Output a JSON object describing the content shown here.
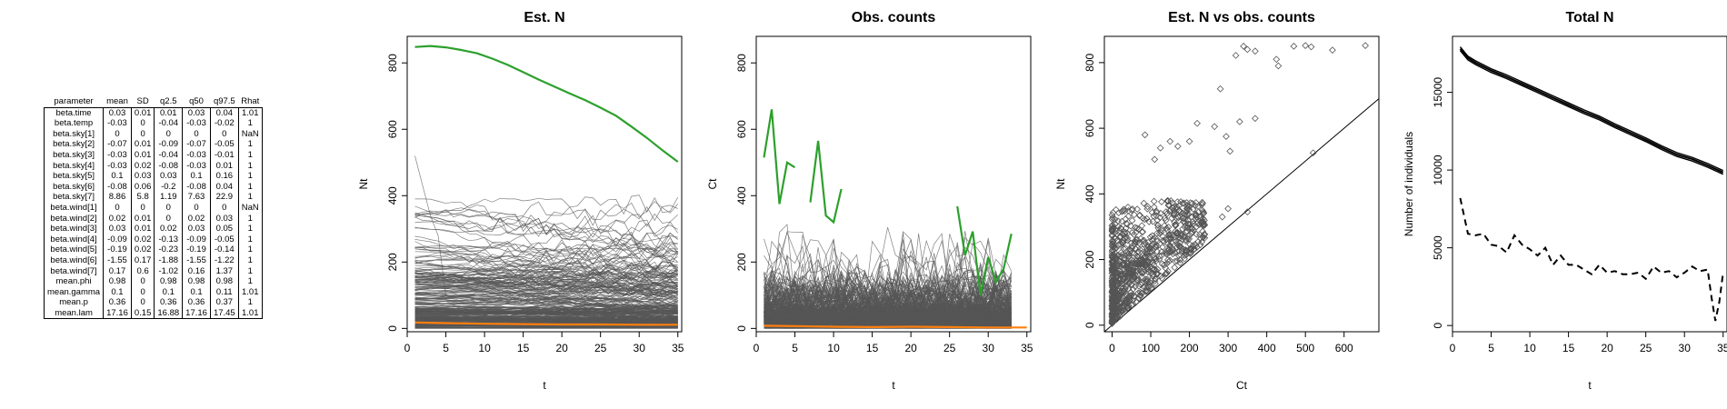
{
  "table": {
    "columns": [
      "parameter",
      "mean",
      "SD",
      "q2.5",
      "q50",
      "q97.5",
      "Rhat"
    ],
    "rows": [
      [
        "beta.time",
        "0.03",
        "0.01",
        "0.01",
        "0.03",
        "0.04",
        "1.01"
      ],
      [
        "beta.temp",
        "-0.03",
        "0",
        "-0.04",
        "-0.03",
        "-0.02",
        "1"
      ],
      [
        "beta.sky[1]",
        "0",
        "0",
        "0",
        "0",
        "0",
        "NaN"
      ],
      [
        "beta.sky[2]",
        "-0.07",
        "0.01",
        "-0.09",
        "-0.07",
        "-0.05",
        "1"
      ],
      [
        "beta.sky[3]",
        "-0.03",
        "0.01",
        "-0.04",
        "-0.03",
        "-0.01",
        "1"
      ],
      [
        "beta.sky[4]",
        "-0.03",
        "0.02",
        "-0.08",
        "-0.03",
        "0.01",
        "1"
      ],
      [
        "beta.sky[5]",
        "0.1",
        "0.03",
        "0.03",
        "0.1",
        "0.16",
        "1"
      ],
      [
        "beta.sky[6]",
        "-0.08",
        "0.06",
        "-0.2",
        "-0.08",
        "0.04",
        "1"
      ],
      [
        "beta.sky[7]",
        "8.86",
        "5.8",
        "1.19",
        "7.63",
        "22.9",
        "1"
      ],
      [
        "beta.wind[1]",
        "0",
        "0",
        "0",
        "0",
        "0",
        "NaN"
      ],
      [
        "beta.wind[2]",
        "0.02",
        "0.01",
        "0",
        "0.02",
        "0.03",
        "1"
      ],
      [
        "beta.wind[3]",
        "0.03",
        "0.01",
        "0.02",
        "0.03",
        "0.05",
        "1"
      ],
      [
        "beta.wind[4]",
        "-0.09",
        "0.02",
        "-0.13",
        "-0.09",
        "-0.05",
        "1"
      ],
      [
        "beta.wind[5]",
        "-0.19",
        "0.02",
        "-0.23",
        "-0.19",
        "-0.14",
        "1"
      ],
      [
        "beta.wind[6]",
        "-1.55",
        "0.17",
        "-1.88",
        "-1.55",
        "-1.22",
        "1"
      ],
      [
        "beta.wind[7]",
        "0.17",
        "0.6",
        "-1.02",
        "0.16",
        "1.37",
        "1"
      ],
      [
        "mean.phi",
        "0.98",
        "0",
        "0.98",
        "0.98",
        "0.98",
        "1"
      ],
      [
        "mean.gamma",
        "0.1",
        "0",
        "0.1",
        "0.1",
        "0.11",
        "1.01"
      ],
      [
        "mean.p",
        "0.36",
        "0",
        "0.36",
        "0.36",
        "0.37",
        "1"
      ],
      [
        "mean.lam",
        "17.16",
        "0.15",
        "16.88",
        "17.16",
        "17.45",
        "1.01"
      ]
    ]
  },
  "chart_data": [
    {
      "type": "line",
      "title": "Est. N",
      "xlabel": "t",
      "ylabel": "Nt",
      "xlim": [
        0,
        35.5
      ],
      "ylim": [
        -10,
        880
      ],
      "xticks": [
        0,
        5,
        10,
        15,
        20,
        25,
        30,
        35
      ],
      "yticks": [
        0,
        200,
        400,
        600,
        800
      ],
      "background": {
        "description_values": "about 300 gray per-site trajectories, most between 0 and 380",
        "color": "#555555"
      },
      "series": [
        {
          "color": "#2ca02c",
          "x": [
            1,
            3,
            5,
            7,
            9,
            11,
            13,
            15,
            17,
            19,
            21,
            23,
            25,
            27,
            29,
            31,
            33,
            35
          ],
          "y": [
            848,
            851,
            847,
            839,
            829,
            813,
            794,
            772,
            750,
            729,
            708,
            688,
            665,
            641,
            608,
            574,
            537,
            502
          ]
        },
        {
          "color": "#ff7f0e",
          "x": [
            1,
            5,
            10,
            15,
            20,
            25,
            30,
            35
          ],
          "y": [
            18,
            16,
            14,
            13,
            12,
            12,
            11,
            11
          ]
        }
      ]
    },
    {
      "type": "line",
      "title": "Obs. counts",
      "xlabel": "t",
      "ylabel": "Ct",
      "xlim": [
        0,
        35.5
      ],
      "ylim": [
        -10,
        880
      ],
      "xticks": [
        0,
        5,
        10,
        15,
        20,
        25,
        30,
        35
      ],
      "yticks": [
        0,
        200,
        400,
        600,
        800
      ],
      "background": {
        "description_values": "about 300 gray per-site count series, mostly between 0 and 250",
        "color": "#555555"
      },
      "series": [
        {
          "color": "#2ca02c",
          "segments": [
            {
              "x": [
                1,
                2,
                3,
                4,
                5
              ],
              "y": [
                515,
                660,
                375,
                500,
                485
              ]
            },
            {
              "x": [
                7,
                8,
                9,
                10,
                11
              ],
              "y": [
                380,
                565,
                340,
                320,
                420
              ]
            },
            {
              "x": [
                26,
                27,
                28,
                29,
                30,
                31,
                32,
                33
              ],
              "y": [
                368,
                220,
                292,
                100,
                215,
                140,
                180,
                285
              ]
            }
          ]
        },
        {
          "color": "#ff7f0e",
          "x": [
            1,
            5,
            10,
            15,
            20,
            25,
            30,
            35
          ],
          "y": [
            8,
            7,
            5,
            4,
            5,
            4,
            3,
            3
          ]
        }
      ]
    },
    {
      "type": "scatter",
      "title": "Est. N vs obs. counts",
      "xlabel": "Ct",
      "ylabel": "Nt",
      "xlim": [
        -20,
        690
      ],
      "ylim": [
        -20,
        880
      ],
      "xticks": [
        0,
        100,
        200,
        300,
        400,
        500,
        600
      ],
      "yticks": [
        0,
        200,
        400,
        600,
        800
      ],
      "reference_line": {
        "type": "1:1 line",
        "x": [
          -20,
          690
        ],
        "y": [
          -20,
          690
        ]
      },
      "marker": "open diamond",
      "cloud": {
        "description_values": "dense cluster of points for Ct 0-250, Nt 0-380, all above the 1:1 line"
      },
      "points": [
        {
          "x": 340,
          "y": 850
        },
        {
          "x": 350,
          "y": 840
        },
        {
          "x": 320,
          "y": 822
        },
        {
          "x": 370,
          "y": 835
        },
        {
          "x": 425,
          "y": 810
        },
        {
          "x": 430,
          "y": 790
        },
        {
          "x": 470,
          "y": 850
        },
        {
          "x": 500,
          "y": 852
        },
        {
          "x": 515,
          "y": 848
        },
        {
          "x": 570,
          "y": 838
        },
        {
          "x": 655,
          "y": 852
        },
        {
          "x": 280,
          "y": 720
        },
        {
          "x": 330,
          "y": 620
        },
        {
          "x": 370,
          "y": 630
        },
        {
          "x": 220,
          "y": 615
        },
        {
          "x": 265,
          "y": 605
        },
        {
          "x": 85,
          "y": 580
        },
        {
          "x": 150,
          "y": 560
        },
        {
          "x": 200,
          "y": 560
        },
        {
          "x": 295,
          "y": 575
        },
        {
          "x": 305,
          "y": 530
        },
        {
          "x": 125,
          "y": 540
        },
        {
          "x": 170,
          "y": 545
        },
        {
          "x": 110,
          "y": 505
        },
        {
          "x": 520,
          "y": 525
        },
        {
          "x": 350,
          "y": 345
        },
        {
          "x": 300,
          "y": 355
        },
        {
          "x": 285,
          "y": 330
        }
      ]
    },
    {
      "type": "line",
      "title": "Total N",
      "xlabel": "t",
      "ylabel": "Number of individuals",
      "xlim": [
        0,
        35.5
      ],
      "ylim": [
        -400,
        18600
      ],
      "xticks": [
        0,
        5,
        10,
        15,
        20,
        25,
        30,
        35
      ],
      "yticks": [
        0,
        5000,
        10000,
        15000
      ],
      "series": [
        {
          "style": "solid",
          "color": "#000000",
          "x": [
            1,
            2,
            3,
            5,
            7,
            9,
            11,
            13,
            15,
            17,
            19,
            21,
            23,
            25,
            27,
            29,
            31,
            33,
            35
          ],
          "y": [
            17800,
            17200,
            16900,
            16400,
            16000,
            15550,
            15100,
            14650,
            14200,
            13750,
            13350,
            12850,
            12400,
            11950,
            11450,
            11000,
            10700,
            10300,
            9850
          ]
        },
        {
          "style": "dashed",
          "color": "#000000",
          "x": [
            1,
            2,
            3,
            4,
            5,
            6,
            7,
            8,
            9,
            10,
            11,
            12,
            13,
            14,
            15,
            16,
            17,
            18,
            19,
            20,
            21,
            22,
            23,
            24,
            25,
            26,
            27,
            28,
            29,
            30,
            31,
            32,
            33,
            33.5,
            34,
            34.5,
            35
          ],
          "y": [
            8200,
            5900,
            5800,
            5900,
            5200,
            5100,
            4700,
            5800,
            5200,
            4900,
            4500,
            5000,
            3900,
            4500,
            3900,
            3900,
            3600,
            3300,
            3900,
            3400,
            3500,
            3300,
            3300,
            3400,
            3000,
            3800,
            3400,
            3500,
            3100,
            3400,
            3800,
            3500,
            3600,
            1800,
            300,
            1500,
            3400
          ]
        }
      ]
    }
  ]
}
